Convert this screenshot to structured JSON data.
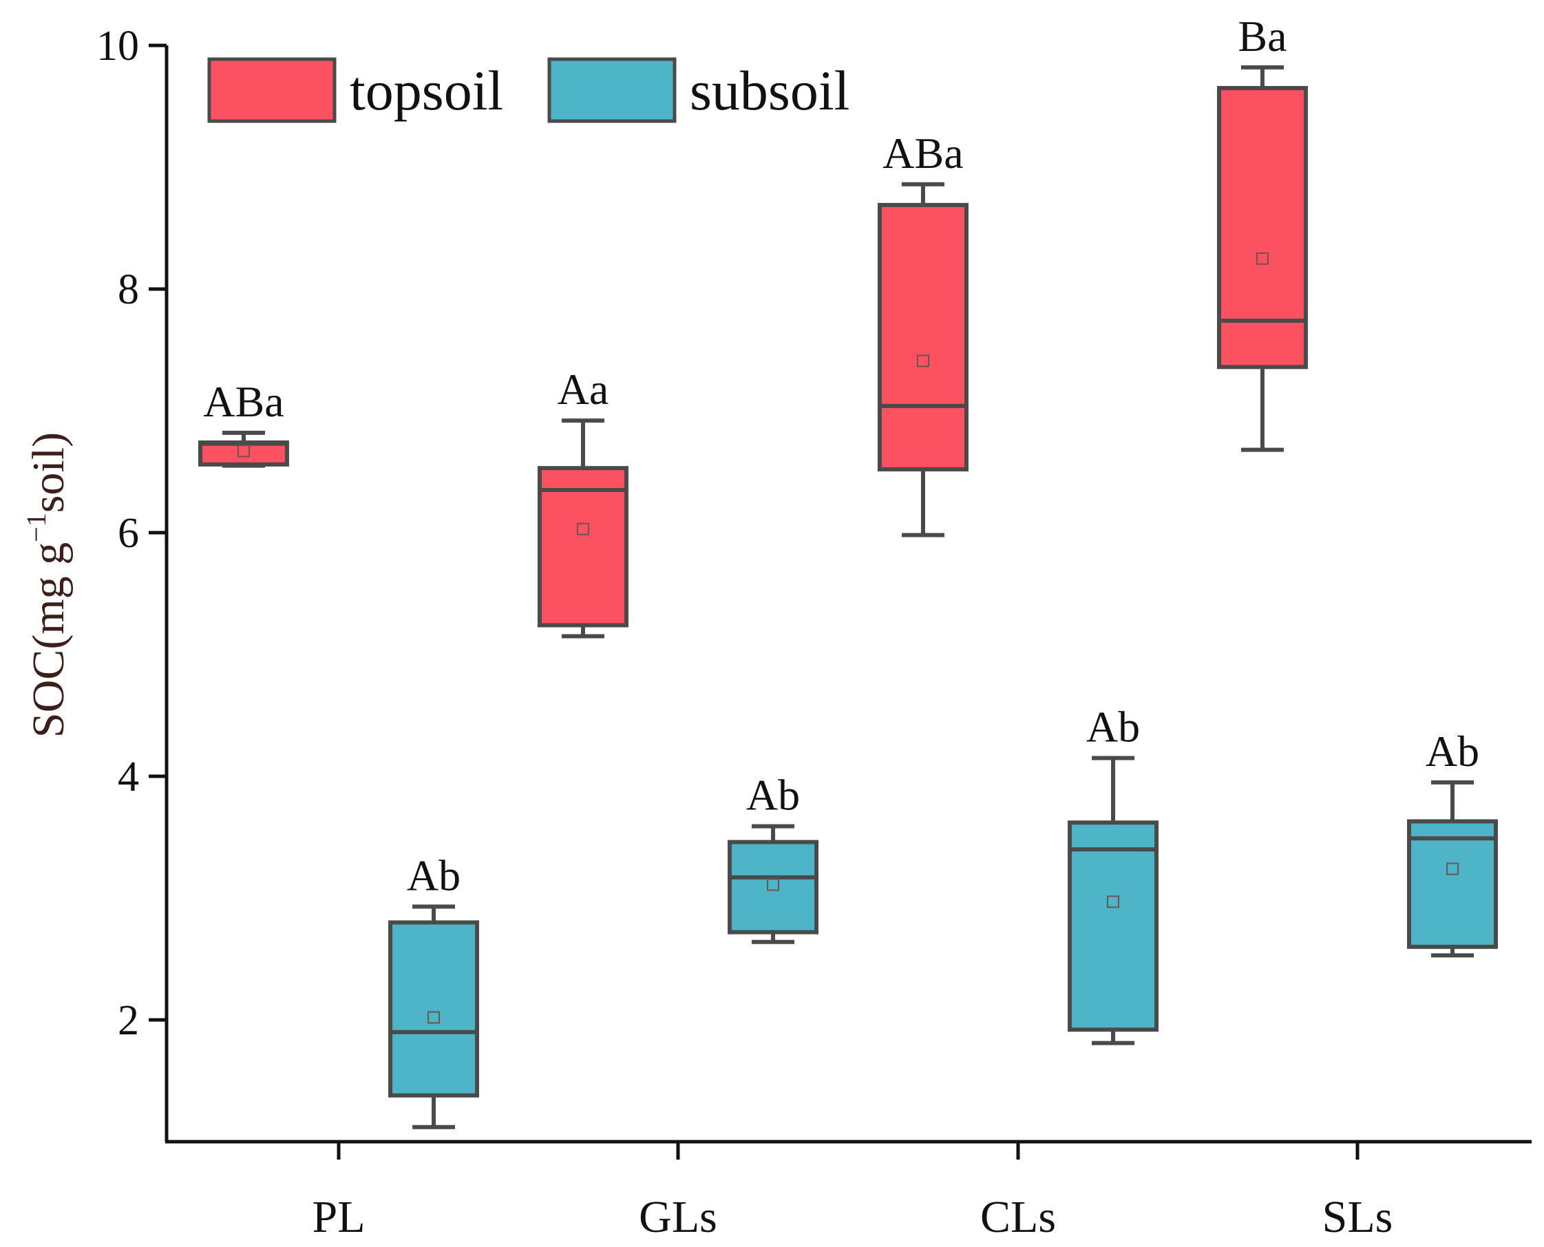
{
  "chart_data": {
    "type": "box",
    "title": "",
    "xlabel": "",
    "ylabel": {
      "prefix": "SOC(mg g",
      "superscript": "−1",
      "suffix": "soil)"
    },
    "ylim": [
      1,
      10
    ],
    "yticks": [
      "2",
      "4",
      "6",
      "8",
      "10"
    ],
    "yticks_values": [
      2,
      4,
      6,
      8,
      10
    ],
    "categories": [
      "PL",
      "GLs",
      "CLs",
      "SLs"
    ],
    "colors": {
      "topsoil": "#fb5161",
      "subsoil": "#4db5c7",
      "line": "#4a4a4a"
    },
    "legend": {
      "position": "top-left",
      "entries": [
        "topsoil",
        "subsoil"
      ]
    },
    "series": [
      {
        "name": "topsoil",
        "boxes": [
          {
            "category": "PL",
            "min": 6.55,
            "q1": 6.56,
            "median": 6.73,
            "q3": 6.74,
            "max": 6.82,
            "mean": 6.67,
            "label": "ABa"
          },
          {
            "category": "GLs",
            "min": 5.15,
            "q1": 5.24,
            "median": 6.35,
            "q3": 6.53,
            "max": 6.92,
            "mean": 6.03,
            "label": "Aa"
          },
          {
            "category": "CLs",
            "min": 5.98,
            "q1": 6.52,
            "median": 7.04,
            "q3": 8.69,
            "max": 8.86,
            "mean": 7.41,
            "label": "ABa"
          },
          {
            "category": "SLs",
            "min": 6.68,
            "q1": 7.36,
            "median": 7.74,
            "q3": 9.65,
            "max": 9.82,
            "mean": 8.25,
            "label": "Ba"
          }
        ]
      },
      {
        "name": "subsoil",
        "boxes": [
          {
            "category": "PL",
            "min": 1.12,
            "q1": 1.38,
            "median": 1.9,
            "q3": 2.8,
            "max": 2.93,
            "mean": 2.02,
            "label": "Ab"
          },
          {
            "category": "GLs",
            "min": 2.64,
            "q1": 2.72,
            "median": 3.17,
            "q3": 3.46,
            "max": 3.59,
            "mean": 3.11,
            "label": "Ab"
          },
          {
            "category": "CLs",
            "min": 1.81,
            "q1": 1.92,
            "median": 3.4,
            "q3": 3.62,
            "max": 4.15,
            "mean": 2.97,
            "label": "Ab"
          },
          {
            "category": "SLs",
            "min": 2.53,
            "q1": 2.6,
            "median": 3.49,
            "q3": 3.63,
            "max": 3.95,
            "mean": 3.24,
            "label": "Ab"
          }
        ]
      }
    ]
  }
}
